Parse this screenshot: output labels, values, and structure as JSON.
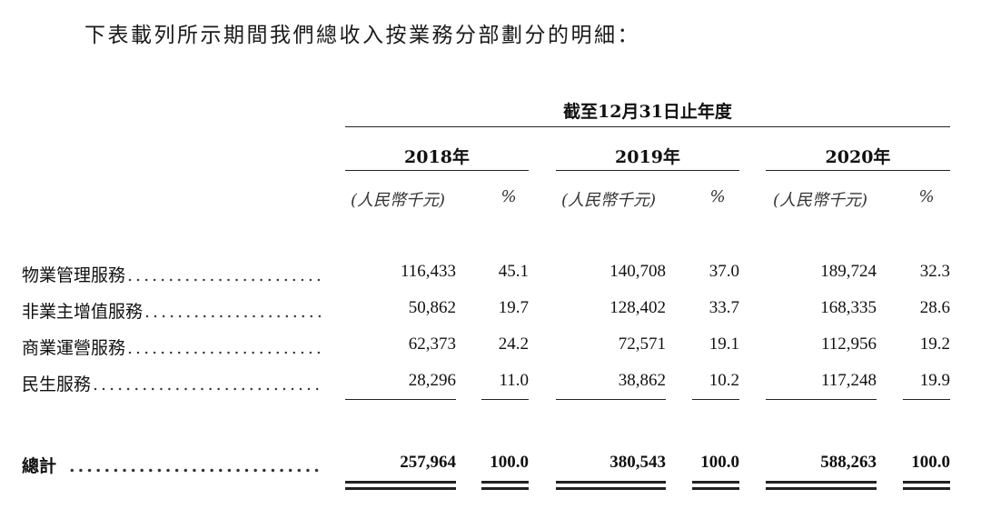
{
  "intro": "下表載列所示期間我們總收入按業務分部劃分的明細：",
  "period_header": "截至12月31日止年度",
  "years": [
    "2018年",
    "2019年",
    "2020年"
  ],
  "unit_amount": "(人民幣千元)",
  "unit_percent": "%",
  "rows": [
    {
      "label": "物業管理服務",
      "values": [
        "116,433",
        "45.1",
        "140,708",
        "37.0",
        "189,724",
        "32.3"
      ]
    },
    {
      "label": "非業主增值服務",
      "values": [
        "50,862",
        "19.7",
        "128,402",
        "33.7",
        "168,335",
        "28.6"
      ]
    },
    {
      "label": "商業運營服務",
      "values": [
        "62,373",
        "24.2",
        "72,571",
        "19.1",
        "112,956",
        "19.2"
      ]
    },
    {
      "label": "民生服務",
      "values": [
        "28,296",
        "11.0",
        "38,862",
        "10.2",
        "117,248",
        "19.9"
      ]
    }
  ],
  "total": {
    "label": "總計",
    "values": [
      "257,964",
      "100.0",
      "380,543",
      "100.0",
      "588,263",
      "100.0"
    ]
  }
}
